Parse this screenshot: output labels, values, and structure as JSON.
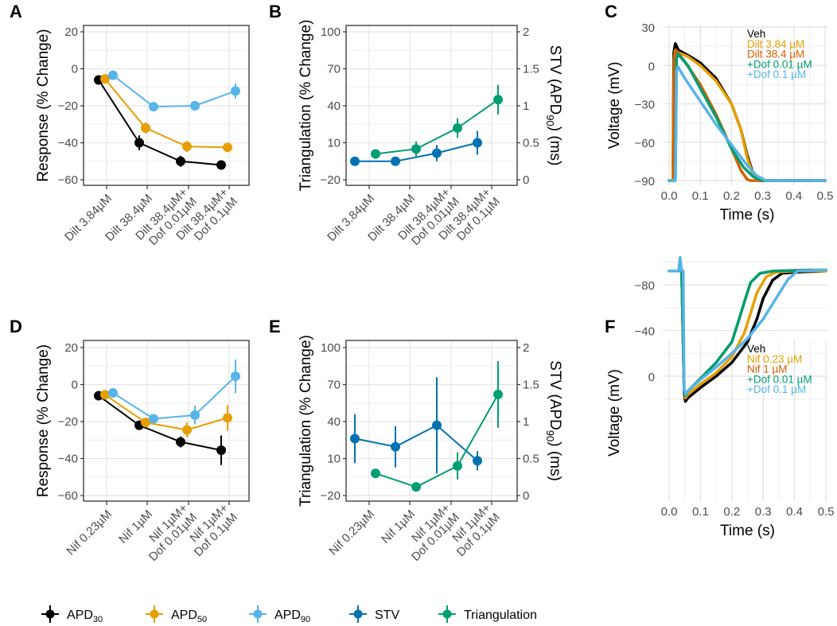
{
  "colors": {
    "APD30": "#000000",
    "APD50": "#E69F00",
    "APD90": "#56B4E9",
    "STV": "#0072B2",
    "Triangulation": "#009E73",
    "Veh": "#000000",
    "Drug1": "#E69F00",
    "Drug2": "#D55E00",
    "Dof001": "#009E73",
    "Dof01": "#56B4E9"
  },
  "legend": {
    "items": [
      {
        "key": "APD30",
        "label": "APD",
        "sub": "30"
      },
      {
        "key": "APD50",
        "label": "APD",
        "sub": "50"
      },
      {
        "key": "APD90",
        "label": "APD",
        "sub": "90"
      },
      {
        "key": "STV",
        "label": "STV",
        "sub": ""
      },
      {
        "key": "Triangulation",
        "label": "Triangulation",
        "sub": ""
      }
    ]
  },
  "chart_data": [
    {
      "panel": "A",
      "type": "line",
      "ylabel": "Response (% Change)",
      "ylim": [
        -60,
        20
      ],
      "yticks": [
        -60,
        -40,
        -20,
        0,
        20
      ],
      "categories": [
        [
          "Dilt 3.84µM"
        ],
        [
          "Dilt 38.4µM"
        ],
        [
          "Dilt 38.4µM+",
          "Dof 0.01µM"
        ],
        [
          "Dilt 38.4µM+",
          "Dof 0.1µM"
        ]
      ],
      "series": [
        {
          "name": "APD30",
          "values": [
            -6,
            -40,
            -50,
            -52
          ],
          "err": [
            1,
            4,
            3,
            1
          ]
        },
        {
          "name": "APD50",
          "values": [
            -5.5,
            -32,
            -42,
            -42.5
          ],
          "err": [
            1,
            3,
            3,
            1
          ]
        },
        {
          "name": "APD90",
          "values": [
            -3.5,
            -20.5,
            -20,
            -12
          ],
          "err": [
            1,
            1,
            1,
            4
          ]
        }
      ]
    },
    {
      "panel": "B",
      "type": "line",
      "ylabel": "Triangulation (% Change)",
      "ylabel_right": "STV (APD90) (ms)",
      "ylim": [
        -20,
        100
      ],
      "yticks": [
        -20,
        10,
        40,
        70,
        100
      ],
      "ylim_right": [
        0,
        2
      ],
      "yticks_right": [
        "0",
        "0.5",
        "1",
        "1.5",
        "2"
      ],
      "categories": [
        [
          "Dilt 3.84µM"
        ],
        [
          "Dilt 38.4µM"
        ],
        [
          "Dilt 38.4µM+",
          "Dof 0.01µM"
        ],
        [
          "Dilt 38.4µM+",
          "Dof 0.1µM"
        ]
      ],
      "series": [
        {
          "name": "STV",
          "axis": "right",
          "values": [
            0.25,
            0.25,
            0.36,
            0.5
          ],
          "err": [
            0.02,
            0.02,
            0.11,
            0.16
          ]
        },
        {
          "name": "Triangulation",
          "axis": "left",
          "values": [
            1,
            5,
            22,
            45
          ],
          "err": [
            1.5,
            6,
            8,
            12
          ]
        }
      ]
    },
    {
      "panel": "C",
      "type": "line",
      "xlabel": "Time (s)",
      "ylabel": "Voltage (mV)",
      "xlim": [
        0,
        0.5
      ],
      "xticks": [
        "0.0",
        "0.1",
        "0.2",
        "0.3",
        "0.4",
        "0.5"
      ],
      "ylim": [
        -90,
        30
      ],
      "yticks": [
        -90,
        -60,
        -30,
        0,
        30
      ],
      "legend": [
        "Veh",
        "Dilt 3.84 µM",
        "Dilt 38.4 µM",
        "+Dof 0.01 µM",
        "+Dof 0.1 µM"
      ],
      "series": [
        {
          "name": "Veh",
          "color_key": "Veh",
          "x": [
            0,
            0.012,
            0.015,
            0.02,
            0.03,
            0.06,
            0.1,
            0.15,
            0.2,
            0.23,
            0.25,
            0.27,
            0.29,
            0.3,
            0.5
          ],
          "y": [
            -90,
            -90,
            10,
            17,
            12,
            8,
            2,
            -10,
            -30,
            -50,
            -70,
            -85,
            -90,
            -90,
            -90
          ]
        },
        {
          "name": "Dilt 3.84 µM",
          "color_key": "Drug1",
          "x": [
            0,
            0.012,
            0.016,
            0.02,
            0.03,
            0.06,
            0.1,
            0.15,
            0.2,
            0.23,
            0.25,
            0.27,
            0.29,
            0.31,
            0.5
          ],
          "y": [
            -90,
            -90,
            5,
            12,
            10,
            7,
            0,
            -12,
            -30,
            -50,
            -72,
            -86,
            -90,
            -90,
            -90
          ]
        },
        {
          "name": "Dilt 38.4 µM",
          "color_key": "Drug2",
          "x": [
            0,
            0.014,
            0.017,
            0.022,
            0.05,
            0.1,
            0.15,
            0.2,
            0.23,
            0.25,
            0.26,
            0.5
          ],
          "y": [
            -90,
            -90,
            5,
            12,
            3,
            -15,
            -38,
            -65,
            -82,
            -89,
            -90,
            -90
          ]
        },
        {
          "name": "+Dof 0.01 µM",
          "color_key": "Dof001",
          "x": [
            0,
            0.02,
            0.024,
            0.028,
            0.06,
            0.1,
            0.15,
            0.2,
            0.24,
            0.27,
            0.3,
            0.5
          ],
          "y": [
            -90,
            -90,
            5,
            9,
            0,
            -18,
            -40,
            -65,
            -80,
            -87,
            -90,
            -90
          ]
        },
        {
          "name": "+Dof 0.1 µM",
          "color_key": "Dof01",
          "x": [
            0,
            0.02,
            0.024,
            0.028,
            0.05,
            0.1,
            0.15,
            0.2,
            0.25,
            0.28,
            0.31,
            0.33,
            0.5
          ],
          "y": [
            -90,
            -90,
            -4,
            -1,
            -10,
            -28,
            -46,
            -62,
            -78,
            -86,
            -90,
            -90,
            -90
          ]
        }
      ]
    },
    {
      "panel": "D",
      "type": "line",
      "ylabel": "Response (% Change)",
      "ylim": [
        -60,
        20
      ],
      "yticks": [
        -60,
        -40,
        -20,
        0,
        20
      ],
      "categories": [
        [
          "Nif 0.23µM"
        ],
        [
          "Nif 1µM"
        ],
        [
          "Nif 1µM+",
          "Dof 0.01µM"
        ],
        [
          "Nif 1µM+",
          "Dof 0.1µM"
        ]
      ],
      "series": [
        {
          "name": "APD30",
          "values": [
            -6,
            -22,
            -31,
            -35.5
          ],
          "err": [
            1,
            1,
            3,
            8
          ]
        },
        {
          "name": "APD50",
          "values": [
            -5.5,
            -20.5,
            -24.5,
            -18
          ],
          "err": [
            1,
            1,
            4,
            7
          ]
        },
        {
          "name": "APD90",
          "values": [
            -4.5,
            -18.5,
            -16.5,
            4.5
          ],
          "err": [
            1,
            1,
            5,
            9
          ]
        }
      ]
    },
    {
      "panel": "E",
      "type": "line",
      "ylabel": "Triangulation (% Change)",
      "ylabel_right": "STV (APD90) (ms)",
      "ylim": [
        -20,
        100
      ],
      "yticks": [
        -20,
        10,
        40,
        70,
        100
      ],
      "ylim_right": [
        0,
        2
      ],
      "yticks_right": [
        "0",
        "0.5",
        "1",
        "1.5",
        "2"
      ],
      "categories": [
        [
          "Nif 0.23µM"
        ],
        [
          "Nif 1µM"
        ],
        [
          "Nif 1µM+",
          "Dof 0.01µM"
        ],
        [
          "Nif 1µM+",
          "Dof 0.1µM"
        ]
      ],
      "series": [
        {
          "name": "STV",
          "axis": "right",
          "values": [
            0.77,
            0.66,
            0.95,
            0.47
          ],
          "err": [
            0.33,
            0.28,
            0.65,
            0.13
          ]
        },
        {
          "name": "Triangulation",
          "axis": "left",
          "values": [
            -2,
            -13,
            4,
            62
          ],
          "err": [
            1.5,
            1.5,
            11,
            27
          ]
        }
      ]
    },
    {
      "panel": "F",
      "type": "line",
      "xlabel": "Time (s)",
      "ylabel": "Voltage (mV)",
      "xlim": [
        0,
        0.5
      ],
      "xticks": [
        "0.0",
        "0.1",
        "0.2",
        "0.3",
        "0.4",
        "0.5"
      ],
      "ylim": [
        -100,
        25
      ],
      "yticks": [
        -80,
        -40,
        0
      ],
      "legend": [
        "Veh",
        "Nif 0.23 µM",
        "Nif 1 µM",
        "+Dof 0.01 µM",
        "+Dof 0.1 µM"
      ],
      "series": [
        {
          "name": "Veh",
          "color_key": "Veh",
          "x": [
            0,
            0.04,
            0.048,
            0.052,
            0.06,
            0.1,
            0.15,
            0.2,
            0.25,
            0.28,
            0.3,
            0.33,
            0.36,
            0.4,
            0.5
          ],
          "y": [
            -92,
            -92,
            15,
            22,
            19,
            10,
            0,
            -12,
            -30,
            -50,
            -68,
            -84,
            -90,
            -91,
            -92
          ]
        },
        {
          "name": "Nif 0.23 µM",
          "color_key": "Drug1",
          "x": [
            0,
            0.04,
            0.048,
            0.052,
            0.06,
            0.1,
            0.15,
            0.2,
            0.24,
            0.26,
            0.28,
            0.31,
            0.34,
            0.4,
            0.5
          ],
          "y": [
            -92,
            -92,
            12,
            19,
            16,
            7,
            -3,
            -17,
            -38,
            -55,
            -73,
            -87,
            -91,
            -92,
            -92
          ]
        },
        {
          "name": "Nif 1 µM",
          "color_key": "Drug2",
          "x": [
            0,
            0.04,
            0.048,
            0.052,
            0.06,
            0.1,
            0.15,
            0.2,
            0.22,
            0.24,
            0.26,
            0.29,
            0.33,
            0.45
          ],
          "y": [
            -92,
            -92,
            12,
            17,
            13,
            2,
            -12,
            -30,
            -47,
            -65,
            -82,
            -90,
            -92,
            -93
          ]
        },
        {
          "name": "+Dof 0.01 µM",
          "color_key": "Dof001",
          "x": [
            0,
            0.04,
            0.048,
            0.052,
            0.06,
            0.1,
            0.15,
            0.2,
            0.22,
            0.24,
            0.26,
            0.29,
            0.33,
            0.5
          ],
          "y": [
            -92,
            -92,
            12,
            17,
            13,
            2,
            -12,
            -30,
            -47,
            -65,
            -82,
            -90,
            -92,
            -93
          ]
        },
        {
          "name": "+Dof 0.1 µM",
          "color_key": "Dof01",
          "x": [
            0,
            0.03,
            0.035,
            0.04,
            0.045,
            0.048,
            0.052,
            0.06,
            0.1,
            0.15,
            0.2,
            0.25,
            0.3,
            0.35,
            0.38,
            0.41,
            0.5
          ],
          "y": [
            -92,
            -92,
            -104,
            -92,
            -92,
            12,
            16,
            13,
            3,
            -8,
            -20,
            -33,
            -50,
            -72,
            -85,
            -92,
            -93
          ]
        }
      ]
    }
  ]
}
